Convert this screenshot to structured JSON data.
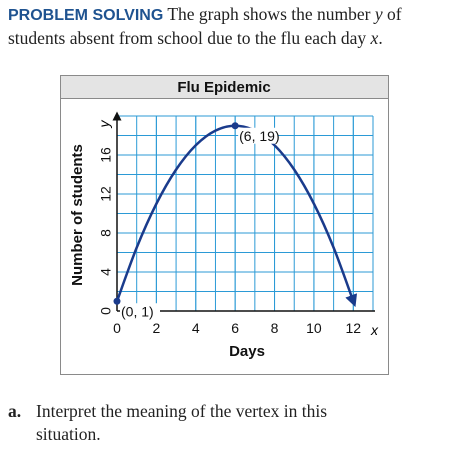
{
  "problem": {
    "lines": [
      [
        "PROBLEM SOLVING",
        " The graph shows the number ",
        "y",
        " of"
      ],
      [
        "students absent from school due to the flu each day ",
        "x",
        "."
      ]
    ]
  },
  "chart_data": {
    "type": "line",
    "title": "Flu Epidemic",
    "x_label": "Days",
    "y_label": "Number of students",
    "x_symbol": "x",
    "y_symbol": "y",
    "x": [
      0,
      1,
      2,
      3,
      4,
      5,
      6,
      7,
      8,
      9,
      10,
      11,
      12
    ],
    "series": [
      {
        "color": "#1a3b8c",
        "values": [
          1,
          6.5,
          11,
          14.5,
          17,
          18.5,
          19,
          18.5,
          17,
          14.5,
          11,
          6.5,
          1
        ]
      }
    ],
    "annotations": [
      {
        "text": "(0, 1)",
        "x": 0,
        "y": 1
      },
      {
        "text": "(6, 19)",
        "x": 6,
        "y": 19
      }
    ],
    "xlim": [
      0,
      13
    ],
    "ylim": [
      0,
      20
    ],
    "xticks": [
      0,
      2,
      4,
      6,
      8,
      10,
      12
    ],
    "yticks": [
      0,
      4,
      8,
      12,
      16
    ],
    "grid": true,
    "grid_color": "#2b9ad6"
  },
  "question": {
    "letter": "a.",
    "lines": [
      "Interpret the meaning of the vertex in this",
      "situation."
    ]
  }
}
